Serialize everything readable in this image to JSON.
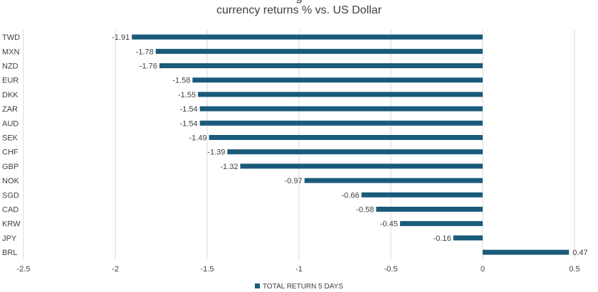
{
  "chart_data": {
    "type": "bar",
    "orientation": "horizontal",
    "title": "g",
    "subtitle": "currency returns % vs. US Dollar",
    "categories": [
      "TWD",
      "MXN",
      "NZD",
      "EUR",
      "DKK",
      "ZAR",
      "AUD",
      "SEK",
      "CHF",
      "GBP",
      "NOK",
      "SGD",
      "CAD",
      "KRW",
      "JPY",
      "BRL"
    ],
    "series": [
      {
        "name": "TOTAL RETURN 5 DAYS",
        "values": [
          -1.91,
          -1.78,
          -1.76,
          -1.58,
          -1.55,
          -1.54,
          -1.54,
          -1.49,
          -1.39,
          -1.32,
          -0.97,
          -0.66,
          -0.58,
          -0.45,
          -0.16,
          0.47
        ],
        "labels": [
          "-1.91",
          "-1.78",
          "-1.76",
          "-1.58",
          "-1.55",
          "-1.54",
          "-1.54",
          "-1.49",
          "-1.39",
          "-1.32",
          "-0.97",
          "-0.66",
          "-0.58",
          "-0.45",
          "-0.16",
          "0.47"
        ]
      }
    ],
    "xlim": [
      -2.5,
      0.5
    ],
    "xticks": [
      -2.5,
      -2,
      -1.5,
      -1,
      -0.5,
      0,
      0.5
    ],
    "xtick_labels": [
      "-2.5",
      "-2",
      "-1.5",
      "-1",
      "-0.5",
      "0",
      "0.5"
    ],
    "grid": "vertical",
    "legend_position": "bottom",
    "bar_color": "#1a5a7a"
  }
}
